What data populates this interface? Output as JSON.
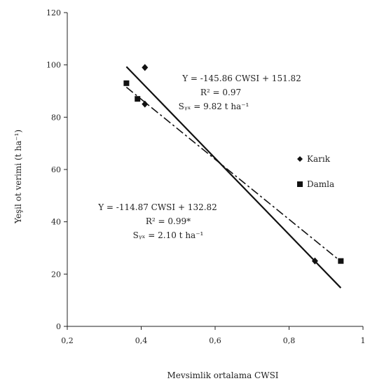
{
  "chart_data": {
    "type": "scatter",
    "xlabel": "Mevsimlik ortalama CWSI",
    "ylabel": "Yeşil ot verimi (t ha⁻¹)",
    "xlim": [
      0.2,
      1.0
    ],
    "ylim": [
      0,
      120
    ],
    "x_ticks": [
      "0,2",
      "0,4",
      "0,6",
      "0,8",
      "1"
    ],
    "y_ticks": [
      "0",
      "20",
      "40",
      "60",
      "80",
      "100",
      "120"
    ],
    "grid": false,
    "legend_position": "right",
    "series": [
      {
        "name": "Karık",
        "marker": "diamond",
        "points": [
          {
            "x": 0.41,
            "y": 99
          },
          {
            "x": 0.41,
            "y": 85
          },
          {
            "x": 0.87,
            "y": 25
          }
        ],
        "fit": {
          "slope": -145.86,
          "intercept": 151.82,
          "x_range": [
            0.36,
            0.94
          ],
          "line_style": "solid"
        },
        "equation": {
          "line1": "Y = -145.86 CWSI + 151.82",
          "line2": "R² = 0.97",
          "line3": "Sᵧₓ = 9.82 t ha⁻¹"
        }
      },
      {
        "name": "Damla",
        "marker": "square",
        "points": [
          {
            "x": 0.36,
            "y": 93
          },
          {
            "x": 0.39,
            "y": 87
          },
          {
            "x": 0.94,
            "y": 25
          }
        ],
        "fit": {
          "slope": -114.87,
          "intercept": 132.82,
          "x_range": [
            0.36,
            0.94
          ],
          "line_style": "dashdot"
        },
        "equation": {
          "line1": "Y = -114.87 CWSI + 132.82",
          "line2": "R² = 0.99*",
          "line3": "Sᵧₓ = 2.10 t ha⁻¹"
        }
      }
    ]
  }
}
